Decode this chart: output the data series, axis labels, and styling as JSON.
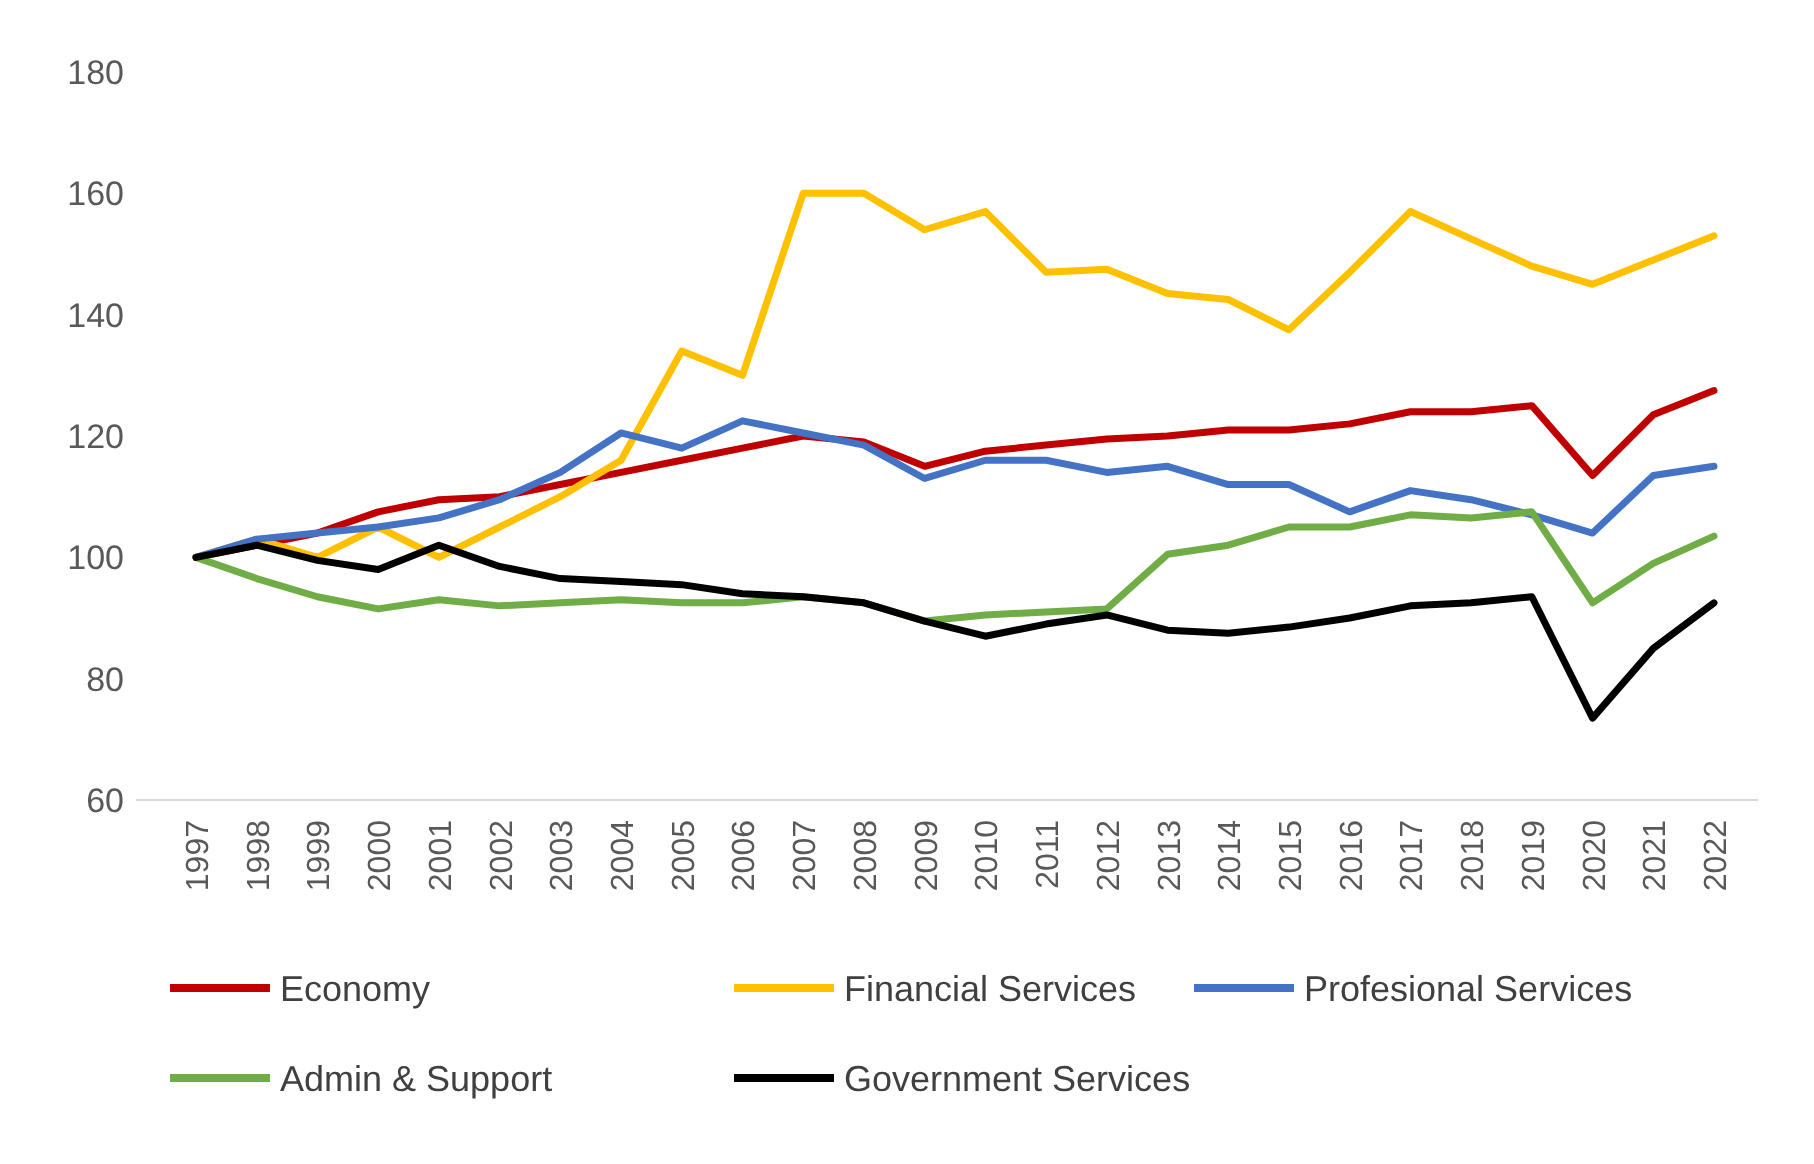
{
  "chart_data": {
    "type": "line",
    "categories": [
      "1997",
      "1998",
      "1999",
      "2000",
      "2001",
      "2002",
      "2003",
      "2004",
      "2005",
      "2006",
      "2007",
      "2008",
      "2009",
      "2010",
      "2011",
      "2012",
      "2013",
      "2014",
      "2015",
      "2016",
      "2017",
      "2018",
      "2019",
      "2020",
      "2021",
      "2022"
    ],
    "ylim": [
      60,
      180
    ],
    "yticks": [
      60,
      80,
      100,
      120,
      140,
      160,
      180
    ],
    "grid": false,
    "legend": "bottom",
    "marker": "none",
    "line_style": "solid",
    "series": [
      {
        "name": "Economy",
        "color": "#c00000",
        "values": [
          100,
          102,
          104,
          107.5,
          109.5,
          110,
          112,
          114,
          116,
          118,
          120,
          119,
          115,
          117.5,
          118.5,
          119.5,
          120,
          121,
          121,
          122,
          124,
          124,
          125,
          113.5,
          123.5,
          127.5
        ]
      },
      {
        "name": "Financial Services",
        "color": "#ffc000",
        "values": [
          100,
          103,
          100,
          105,
          100,
          105,
          110,
          116,
          134,
          130,
          160,
          160,
          154,
          157,
          147,
          147.5,
          143.5,
          142.5,
          137.5,
          147,
          157,
          152.5,
          148,
          145,
          149,
          153
        ]
      },
      {
        "name": "Profesional Services",
        "color": "#4472c4",
        "values": [
          100,
          103,
          104,
          105,
          106.5,
          109.5,
          114,
          120.5,
          118,
          122.5,
          120.5,
          118.5,
          113,
          116,
          116,
          114,
          115,
          112,
          112,
          107.5,
          111,
          109.5,
          107,
          104,
          113.5,
          115
        ]
      },
      {
        "name": "Admin & Support",
        "color": "#70ad47",
        "values": [
          100,
          96.5,
          93.5,
          91.5,
          93,
          92,
          92.5,
          93,
          92.5,
          92.5,
          93.5,
          92.5,
          89.5,
          90.5,
          91,
          91.5,
          100.5,
          102,
          105,
          105,
          107,
          106.5,
          107.5,
          92.5,
          99,
          103.5
        ]
      },
      {
        "name": "Government Services",
        "color": "#000000",
        "values": [
          100,
          102,
          99.5,
          98,
          102,
          98.5,
          96.5,
          96,
          95.5,
          94,
          93.5,
          92.5,
          89.5,
          87,
          89,
          90.5,
          88,
          87.5,
          88.5,
          90,
          92,
          92.5,
          93.5,
          73.5,
          85,
          92.5
        ]
      }
    ]
  }
}
